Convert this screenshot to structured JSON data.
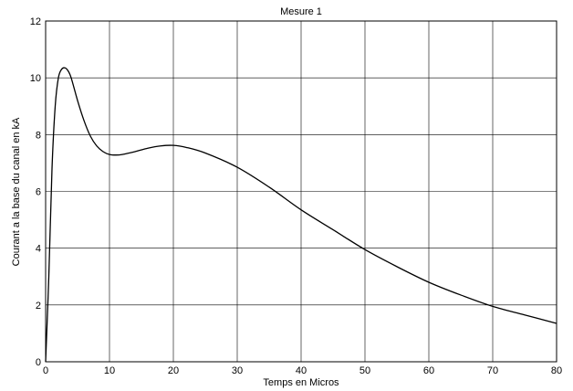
{
  "chart_data": {
    "type": "line",
    "title": "Mesure 1",
    "xlabel": "Temps en Micros",
    "ylabel": "Courant a la base du canal en kA",
    "xlim": [
      0,
      80
    ],
    "ylim": [
      0,
      12
    ],
    "xticks": [
      0,
      10,
      20,
      30,
      40,
      50,
      60,
      70,
      80
    ],
    "yticks": [
      0,
      2,
      4,
      6,
      8,
      10,
      12
    ],
    "grid": true,
    "series": [
      {
        "color": "#000000",
        "x": [
          0,
          0.5,
          1,
          1.5,
          2,
          2.5,
          3,
          3.5,
          4,
          5,
          6,
          7,
          8,
          9,
          10,
          11,
          12,
          14,
          16,
          18,
          20,
          22,
          25,
          30,
          35,
          40,
          45,
          50,
          55,
          60,
          65,
          70,
          75,
          80
        ],
        "y": [
          0,
          3.0,
          6.8,
          9.0,
          10.0,
          10.3,
          10.35,
          10.25,
          10.0,
          9.2,
          8.5,
          7.95,
          7.6,
          7.4,
          7.3,
          7.28,
          7.3,
          7.4,
          7.52,
          7.6,
          7.62,
          7.55,
          7.35,
          6.85,
          6.15,
          5.35,
          4.65,
          3.95,
          3.35,
          2.8,
          2.35,
          1.95,
          1.65,
          1.35
        ]
      }
    ]
  }
}
